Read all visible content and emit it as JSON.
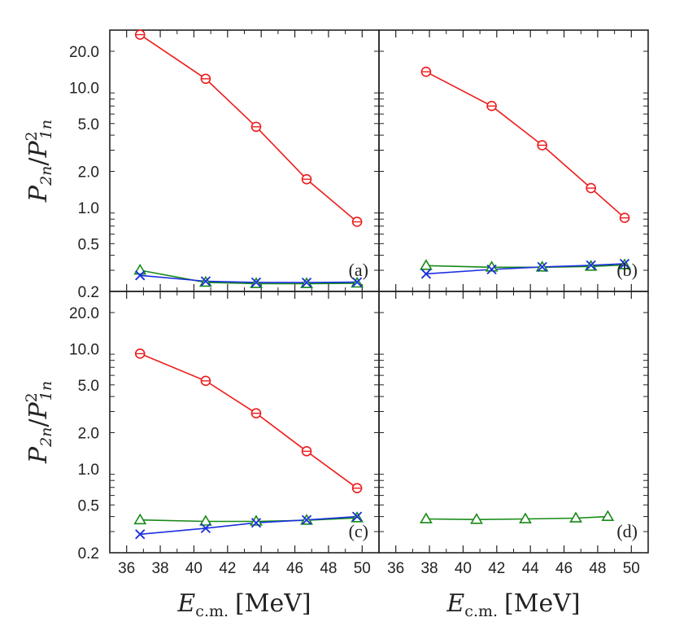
{
  "chart_data": {
    "type": "line",
    "x_scale": "linear",
    "y_scale": "log",
    "xlim": [
      35,
      51
    ],
    "ylim": [
      0.2,
      30
    ],
    "x_ticks": [
      36,
      38,
      40,
      42,
      44,
      46,
      48,
      50
    ],
    "x_tick_labels": [
      "36",
      "38",
      "40",
      "42",
      "44",
      "46",
      "48",
      "50"
    ],
    "y_ticks": [
      0.2,
      0.5,
      1.0,
      2.0,
      5.0,
      10.0,
      20.0
    ],
    "y_tick_labels": [
      "0.2",
      "0.5",
      "1.0",
      "2.0",
      "5.0",
      "10.0",
      "20.0"
    ],
    "xlabel_main": "E",
    "xlabel_sub": "c.m.",
    "xlabel_unit": "[MeV]",
    "ylabel_num": "P",
    "ylabel_num_sub": "2n",
    "ylabel_den": "P",
    "ylabel_den_sup": "2",
    "ylabel_den_sub": "1n",
    "grid": false,
    "colors": {
      "red": "#ee1c1c",
      "green": "#168a16",
      "blue": "#1a2ee0",
      "axis": "#222222"
    },
    "panels": [
      {
        "label": "(a)",
        "series": [
          {
            "color": "red",
            "marker": "circle",
            "x": [
              36.8,
              40.7,
              43.7,
              46.7,
              49.7
            ],
            "y": [
              27.5,
              11.8,
              4.7,
              1.72,
              0.76
            ]
          },
          {
            "color": "green",
            "marker": "triangle",
            "x": [
              36.8,
              40.7,
              43.7,
              46.7,
              49.7
            ],
            "y": [
              0.3,
              0.238,
              0.232,
              0.232,
              0.234
            ]
          },
          {
            "color": "blue",
            "marker": "cross",
            "x": [
              36.8,
              40.7,
              43.7,
              46.7,
              49.7
            ],
            "y": [
              0.272,
              0.243,
              0.238,
              0.237,
              0.239
            ]
          }
        ]
      },
      {
        "label": "(b)",
        "series": [
          {
            "color": "red",
            "marker": "circle",
            "x": [
              37.8,
              41.7,
              44.7,
              47.6,
              49.6
            ],
            "y": [
              13.5,
              7.0,
              3.3,
              1.45,
              0.82
            ]
          },
          {
            "color": "green",
            "marker": "triangle",
            "x": [
              37.8,
              41.7,
              44.7,
              47.6,
              49.6
            ],
            "y": [
              0.328,
              0.318,
              0.318,
              0.323,
              0.332
            ]
          },
          {
            "color": "blue",
            "marker": "cross",
            "x": [
              37.8,
              41.7,
              44.7,
              47.6,
              49.6
            ],
            "y": [
              0.28,
              0.305,
              0.32,
              0.33,
              0.34
            ]
          }
        ]
      },
      {
        "label": "(c)",
        "series": [
          {
            "color": "red",
            "marker": "circle",
            "x": [
              36.8,
              40.7,
              43.7,
              46.7,
              49.7
            ],
            "y": [
              9.1,
              5.4,
              2.9,
              1.4,
              0.69
            ]
          },
          {
            "color": "green",
            "marker": "triangle",
            "x": [
              36.8,
              40.7,
              43.7,
              46.7,
              49.7
            ],
            "y": [
              0.375,
              0.365,
              0.365,
              0.372,
              0.39
            ]
          },
          {
            "color": "blue",
            "marker": "cross",
            "x": [
              36.8,
              40.7,
              43.7,
              46.7,
              49.7
            ],
            "y": [
              0.285,
              0.32,
              0.355,
              0.375,
              0.4
            ]
          }
        ]
      },
      {
        "label": "(d)",
        "series": [
          {
            "color": "green",
            "marker": "triangle",
            "x": [
              37.8,
              40.8,
              43.7,
              46.7,
              48.6
            ],
            "y": [
              0.382,
              0.378,
              0.382,
              0.388,
              0.4
            ]
          }
        ]
      }
    ]
  }
}
